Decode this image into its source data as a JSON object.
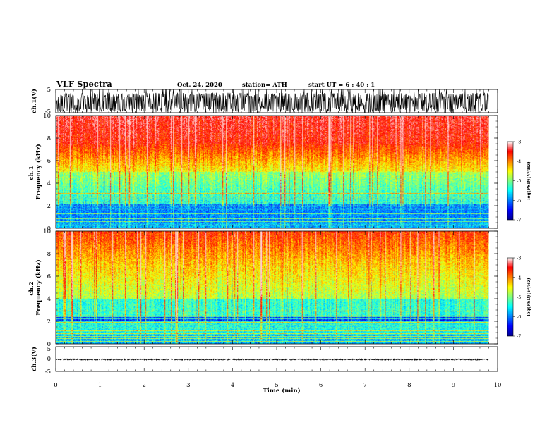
{
  "header": {
    "title": "VLF Spectra",
    "date": "Oct. 24, 2020",
    "station": "station= ATH",
    "start": "start  UT  =  6  : 40 : 1"
  },
  "chart_data": [
    {
      "type": "line",
      "panel": "ch1-waveform",
      "ylabel": "ch.1(V)",
      "ylim": [
        -5,
        5
      ],
      "yticks": [
        "5",
        "-5"
      ],
      "xlim": [
        0,
        10
      ],
      "color": "#000000"
    },
    {
      "type": "heatmap",
      "panel": "ch1-spectrogram",
      "ylabel": "ch.1\nFrequency (kHz)",
      "ylim": [
        0,
        10
      ],
      "yticks": [
        "0",
        "2",
        "4",
        "6",
        "8",
        "10"
      ],
      "xlim": [
        0,
        10
      ],
      "data_xmax": 9.8,
      "colorbar": {
        "title": "log(PSD)(V²/Hz)",
        "range": [
          -7,
          -3
        ],
        "ticks": [
          "-3",
          "-4",
          "-5",
          "-6",
          "-7"
        ]
      }
    },
    {
      "type": "heatmap",
      "panel": "ch2-spectrogram",
      "ylabel": "ch.2\nFrequency (kHz)",
      "ylim": [
        0,
        10
      ],
      "yticks": [
        "0",
        "2",
        "4",
        "6",
        "8",
        "10"
      ],
      "xlim": [
        0,
        10
      ],
      "data_xmax": 9.8,
      "colorbar": {
        "title": "log(PSD)(V²/Hz)",
        "range": [
          -7,
          -3
        ],
        "ticks": [
          "-3",
          "-4",
          "-5",
          "-6",
          "-7"
        ]
      }
    },
    {
      "type": "line",
      "panel": "ch3-waveform",
      "ylabel": "ch.3(V)",
      "ylim": [
        -5,
        5
      ],
      "yticks": [
        "5",
        "0",
        "-5"
      ],
      "xlim": [
        0,
        10
      ],
      "color": "#000000"
    }
  ],
  "xaxis": {
    "label": "Time  (min)",
    "ticks": [
      "0",
      "1",
      "2",
      "3",
      "4",
      "5",
      "6",
      "7",
      "8",
      "9",
      "10"
    ]
  }
}
